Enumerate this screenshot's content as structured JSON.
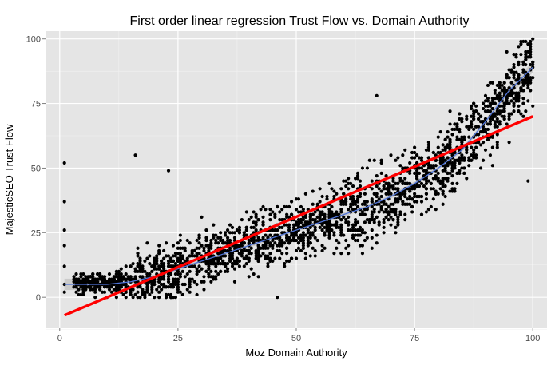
{
  "chart_data": {
    "type": "scatter",
    "title": "First order linear regression Trust Flow vs. Domain Authority",
    "xlabel": "Moz Domain Authority",
    "ylabel": "MajesticSEO Trust Flow",
    "xlim": [
      -3,
      103
    ],
    "ylim": [
      -12,
      103
    ],
    "x_ticks": [
      0,
      25,
      50,
      75,
      100
    ],
    "y_ticks": [
      0,
      25,
      50,
      75,
      100
    ],
    "grid": true,
    "legend": "none",
    "colors": {
      "panel": "#e5e5e5",
      "grid_major": "#ffffff",
      "grid_minor": "#f2f2f2",
      "points": "#000000",
      "linear_fit": "#ff0000",
      "smooth_fit": "#4f74d9",
      "smooth_band": "#b8b8b8"
    },
    "series": [
      {
        "kind": "points",
        "sample_points": [
          [
            1,
            52
          ],
          [
            1,
            37
          ],
          [
            1,
            26
          ],
          [
            1,
            20
          ],
          [
            1,
            12
          ],
          [
            1,
            5
          ],
          [
            1,
            2
          ],
          [
            16,
            55
          ],
          [
            23,
            49
          ],
          [
            46,
            0
          ],
          [
            67,
            78
          ],
          [
            99,
            45
          ],
          [
            5,
            6
          ],
          [
            8,
            5
          ],
          [
            10,
            4
          ],
          [
            12,
            0
          ],
          [
            14,
            0
          ],
          [
            15,
            3
          ],
          [
            17,
            10
          ],
          [
            20,
            6
          ],
          [
            22,
            12
          ],
          [
            25,
            15
          ],
          [
            28,
            18
          ],
          [
            30,
            20
          ],
          [
            32,
            22
          ],
          [
            35,
            24
          ],
          [
            38,
            26
          ],
          [
            40,
            30
          ],
          [
            43,
            28
          ],
          [
            45,
            33
          ],
          [
            48,
            35
          ],
          [
            50,
            38
          ],
          [
            52,
            40
          ],
          [
            55,
            42
          ],
          [
            57,
            44
          ],
          [
            60,
            45
          ],
          [
            63,
            48
          ],
          [
            65,
            50
          ],
          [
            68,
            52
          ],
          [
            70,
            55
          ],
          [
            73,
            57
          ],
          [
            75,
            58
          ],
          [
            78,
            60
          ],
          [
            80,
            62
          ],
          [
            83,
            65
          ],
          [
            85,
            68
          ],
          [
            88,
            72
          ],
          [
            90,
            76
          ],
          [
            92,
            80
          ],
          [
            95,
            85
          ],
          [
            97,
            90
          ],
          [
            99,
            95
          ],
          [
            100,
            100
          ],
          [
            99,
            98
          ]
        ]
      },
      {
        "kind": "linear_fit",
        "x": [
          1,
          100
        ],
        "y": [
          -7,
          70
        ]
      },
      {
        "kind": "smooth_fit",
        "x": [
          1,
          5,
          10,
          15,
          20,
          25,
          30,
          35,
          40,
          45,
          50,
          55,
          60,
          65,
          70,
          75,
          80,
          85,
          90,
          95,
          100
        ],
        "y": [
          5,
          5,
          5,
          6,
          8,
          11,
          14,
          17,
          20,
          23,
          26,
          29,
          32,
          35,
          39,
          44,
          50,
          57,
          68,
          80,
          89
        ]
      }
    ]
  }
}
